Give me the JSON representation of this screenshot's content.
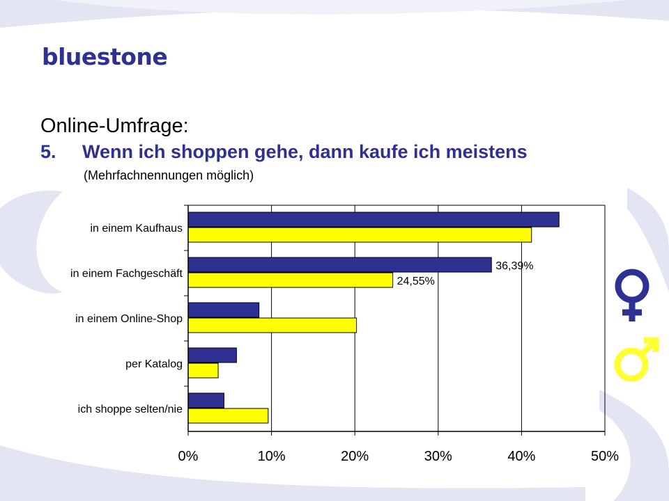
{
  "header": {
    "logo_text": "bluestone",
    "subtitle": "Online-Umfrage:",
    "question_number": "5.",
    "question": "Wenn ich shoppen gehe, dann kaufe ich meistens",
    "note": "(Mehrfachnennungen möglich)"
  },
  "symbols": {
    "female": "female-symbol-icon",
    "male": "male-symbol-icon"
  },
  "colors": {
    "brand": "#2e3192",
    "female_bar": "#2e3192",
    "male_bar": "#ffff00",
    "swirl": "#e4e5f3"
  },
  "chart_data": {
    "type": "bar",
    "orientation": "horizontal",
    "categories": [
      "in einem Kaufhaus",
      "in einem Fachgeschäft",
      "in einem Online-Shop",
      "per Katalog",
      "ich shoppe selten/nie"
    ],
    "series": [
      {
        "name": "Frauen",
        "color": "#2e3192",
        "values": [
          44.5,
          36.39,
          8.5,
          5.8,
          4.3
        ]
      },
      {
        "name": "Männer",
        "color": "#ffff00",
        "values": [
          41.2,
          24.55,
          20.2,
          3.6,
          9.6
        ]
      }
    ],
    "data_labels": [
      {
        "series": 0,
        "category": 1,
        "text": "36,39%"
      },
      {
        "series": 1,
        "category": 1,
        "text": "24,55%"
      }
    ],
    "xlim": [
      0,
      50
    ],
    "xticks": [
      0,
      10,
      20,
      30,
      40,
      50
    ],
    "xtick_labels": [
      "0%",
      "10%",
      "20%",
      "30%",
      "40%",
      "50%"
    ],
    "grid": true
  }
}
